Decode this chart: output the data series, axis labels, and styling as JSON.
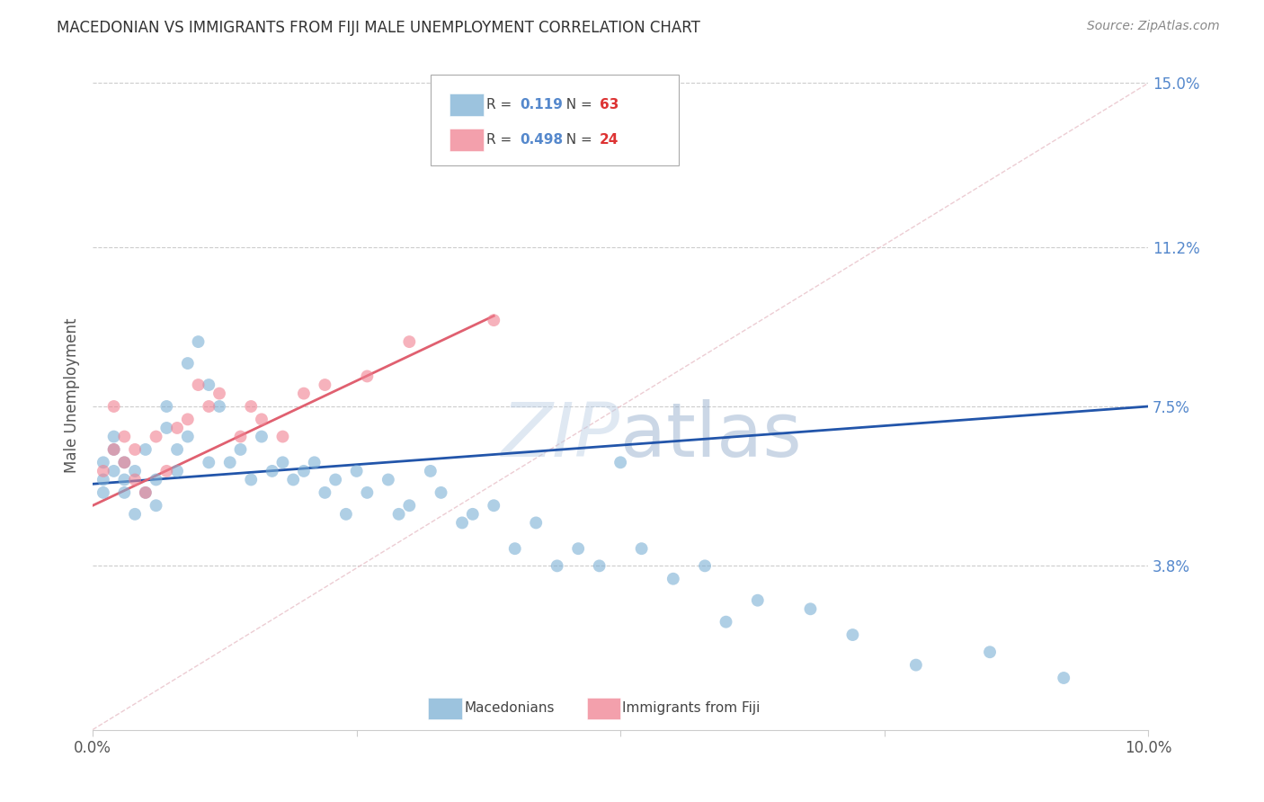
{
  "title": "MACEDONIAN VS IMMIGRANTS FROM FIJI MALE UNEMPLOYMENT CORRELATION CHART",
  "source": "Source: ZipAtlas.com",
  "ylabel": "Male Unemployment",
  "macedonian_color": "#7bafd4",
  "fiji_color": "#f08090",
  "blue_line_color": "#2255aa",
  "pink_line_color": "#e06070",
  "dashed_line_color": "#e8b0b8",
  "background_color": "#ffffff",
  "macedonian_x": [
    0.001,
    0.001,
    0.001,
    0.002,
    0.002,
    0.002,
    0.003,
    0.003,
    0.003,
    0.004,
    0.004,
    0.005,
    0.005,
    0.006,
    0.006,
    0.007,
    0.007,
    0.008,
    0.008,
    0.009,
    0.009,
    0.01,
    0.011,
    0.011,
    0.012,
    0.013,
    0.014,
    0.015,
    0.016,
    0.017,
    0.018,
    0.019,
    0.02,
    0.021,
    0.022,
    0.023,
    0.024,
    0.025,
    0.026,
    0.028,
    0.029,
    0.03,
    0.032,
    0.033,
    0.035,
    0.036,
    0.038,
    0.04,
    0.042,
    0.044,
    0.046,
    0.048,
    0.05,
    0.052,
    0.055,
    0.058,
    0.06,
    0.063,
    0.068,
    0.072,
    0.078,
    0.085,
    0.092
  ],
  "macedonian_y": [
    0.062,
    0.058,
    0.055,
    0.065,
    0.06,
    0.068,
    0.058,
    0.062,
    0.055,
    0.06,
    0.05,
    0.065,
    0.055,
    0.058,
    0.052,
    0.07,
    0.075,
    0.065,
    0.06,
    0.068,
    0.085,
    0.09,
    0.08,
    0.062,
    0.075,
    0.062,
    0.065,
    0.058,
    0.068,
    0.06,
    0.062,
    0.058,
    0.06,
    0.062,
    0.055,
    0.058,
    0.05,
    0.06,
    0.055,
    0.058,
    0.05,
    0.052,
    0.06,
    0.055,
    0.048,
    0.05,
    0.052,
    0.042,
    0.048,
    0.038,
    0.042,
    0.038,
    0.062,
    0.042,
    0.035,
    0.038,
    0.025,
    0.03,
    0.028,
    0.022,
    0.015,
    0.018,
    0.012
  ],
  "fiji_x": [
    0.001,
    0.002,
    0.002,
    0.003,
    0.003,
    0.004,
    0.004,
    0.005,
    0.006,
    0.007,
    0.008,
    0.009,
    0.01,
    0.011,
    0.012,
    0.014,
    0.015,
    0.016,
    0.018,
    0.02,
    0.022,
    0.026,
    0.03,
    0.038
  ],
  "fiji_y": [
    0.06,
    0.065,
    0.075,
    0.062,
    0.068,
    0.058,
    0.065,
    0.055,
    0.068,
    0.06,
    0.07,
    0.072,
    0.08,
    0.075,
    0.078,
    0.068,
    0.075,
    0.072,
    0.068,
    0.078,
    0.08,
    0.082,
    0.09,
    0.095
  ],
  "blue_trend_x": [
    0.0,
    0.1
  ],
  "blue_trend_y": [
    0.057,
    0.075
  ],
  "pink_trend_x": [
    0.0,
    0.038
  ],
  "pink_trend_y": [
    0.052,
    0.096
  ],
  "dashed_trend_x": [
    0.0,
    0.1
  ],
  "dashed_trend_y": [
    0.0,
    0.15
  ],
  "ytick_vals": [
    0.0,
    0.038,
    0.075,
    0.112,
    0.15
  ],
  "ytick_labels": [
    "",
    "3.8%",
    "7.5%",
    "11.2%",
    "15.0%"
  ],
  "xtick_vals": [
    0.0,
    0.025,
    0.05,
    0.075,
    0.1
  ],
  "xtick_labels": [
    "0.0%",
    "",
    "",
    "",
    "10.0%"
  ],
  "legend_r1": "0.119",
  "legend_n1": "63",
  "legend_r2": "0.498",
  "legend_n2": "24"
}
